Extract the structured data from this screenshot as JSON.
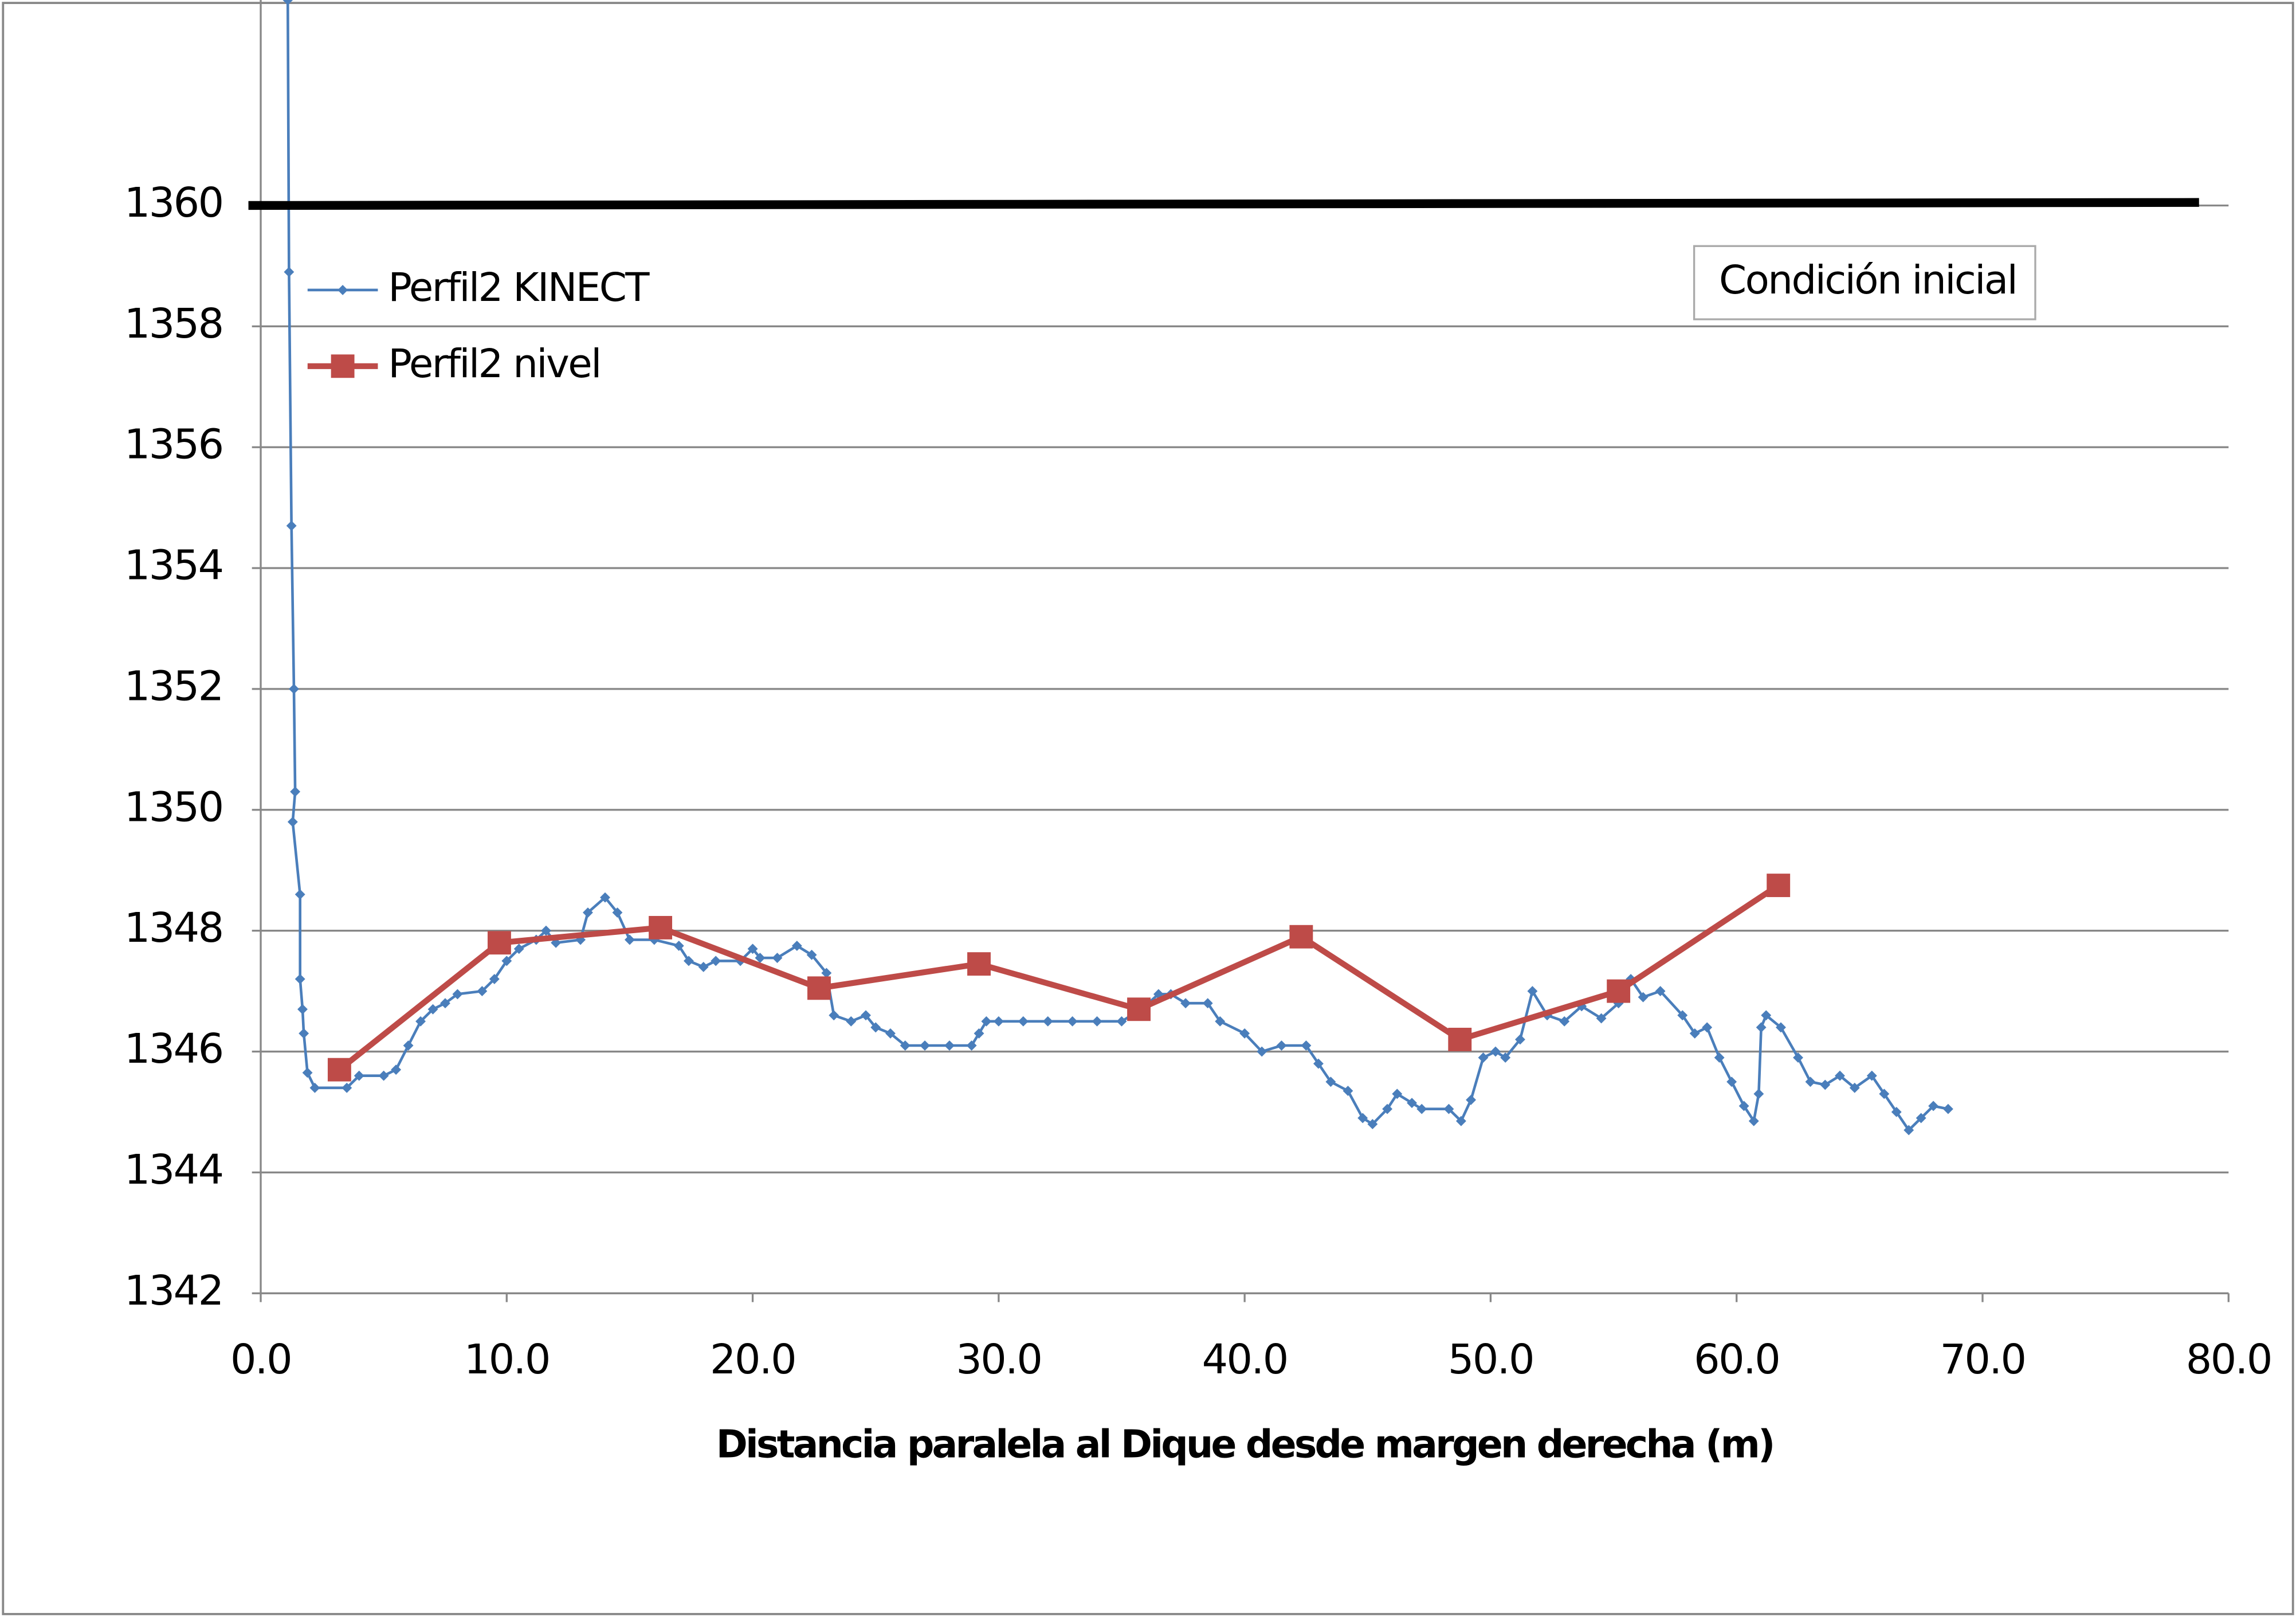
{
  "chart_data": {
    "type": "line",
    "x_label": "Distancia paralela al Dique desde margen derecha (m)",
    "xlim": [
      0,
      80
    ],
    "xticks": [
      {
        "value": 0,
        "label": "0.0"
      },
      {
        "value": 10,
        "label": "10.0"
      },
      {
        "value": 20,
        "label": "20.0"
      },
      {
        "value": 30,
        "label": "30.0"
      },
      {
        "value": 40,
        "label": "40.0"
      },
      {
        "value": 50,
        "label": "50.0"
      },
      {
        "value": 60,
        "label": "60.0"
      },
      {
        "value": 70,
        "label": "70.0"
      },
      {
        "value": 80,
        "label": "80.0"
      }
    ],
    "ylim": [
      1342,
      1363.4
    ],
    "yticks": [
      1342,
      1344,
      1346,
      1348,
      1350,
      1352,
      1354,
      1356,
      1358,
      1360
    ],
    "grid": true,
    "series": [
      {
        "name": "Perfil2 KINECT",
        "color": "#4a7ebb",
        "marker": "diamond",
        "x": [
          1.1,
          1.15,
          1.25,
          1.35,
          1.4,
          1.3,
          1.6,
          1.6,
          1.7,
          1.75,
          1.9,
          2.2,
          3.5,
          4.0,
          5.0,
          5.5,
          6.0,
          6.5,
          7.0,
          7.5,
          8.0,
          9.0,
          9.5,
          10.0,
          10.5,
          11.2,
          11.6,
          12.0,
          13.0,
          13.3,
          14.0,
          14.5,
          15.0,
          16.0,
          17.0,
          17.4,
          18.0,
          18.5,
          19.5,
          20.0,
          20.3,
          21.0,
          21.8,
          22.4,
          23.0,
          23.3,
          24.0,
          24.6,
          25.0,
          25.6,
          26.2,
          27.0,
          28.0,
          28.9,
          29.2,
          29.5,
          30.0,
          31.0,
          32.0,
          33.0,
          34.0,
          35.0,
          35.8,
          36.5,
          37.0,
          37.6,
          38.5,
          39.0,
          40.0,
          40.7,
          41.5,
          42.5,
          43.0,
          43.5,
          44.2,
          44.8,
          45.2,
          45.8,
          46.2,
          46.8,
          47.2,
          48.3,
          48.8,
          49.2,
          49.7,
          50.2,
          50.6,
          51.2,
          51.7,
          52.3,
          53.0,
          53.7,
          54.5,
          55.2,
          55.7,
          56.2,
          56.9,
          57.8,
          58.3,
          58.8,
          59.3,
          59.8,
          60.3,
          60.7,
          60.9,
          61.0,
          61.2,
          61.8,
          62.5,
          63.0,
          63.6,
          64.2,
          64.8,
          65.5,
          66.0,
          66.5,
          67.0,
          67.5,
          68.0,
          68.6
        ],
        "values": [
          1363.4,
          1358.9,
          1354.7,
          1352.0,
          1350.3,
          1349.8,
          1348.6,
          1347.2,
          1346.7,
          1346.3,
          1345.65,
          1345.4,
          1345.4,
          1345.6,
          1345.6,
          1345.7,
          1346.1,
          1346.5,
          1346.7,
          1346.8,
          1346.95,
          1347.0,
          1347.2,
          1347.5,
          1347.7,
          1347.85,
          1348.0,
          1347.8,
          1347.85,
          1348.3,
          1348.55,
          1348.3,
          1347.85,
          1347.85,
          1347.75,
          1347.5,
          1347.4,
          1347.5,
          1347.5,
          1347.7,
          1347.55,
          1347.55,
          1347.75,
          1347.6,
          1347.3,
          1346.6,
          1346.5,
          1346.6,
          1346.4,
          1346.3,
          1346.1,
          1346.1,
          1346.1,
          1346.1,
          1346.3,
          1346.5,
          1346.5,
          1346.5,
          1346.5,
          1346.5,
          1346.5,
          1346.5,
          1346.7,
          1346.95,
          1346.95,
          1346.8,
          1346.8,
          1346.5,
          1346.3,
          1346.0,
          1346.1,
          1346.1,
          1345.8,
          1345.5,
          1345.35,
          1344.9,
          1344.8,
          1345.05,
          1345.3,
          1345.15,
          1345.05,
          1345.05,
          1344.85,
          1345.2,
          1345.9,
          1346.0,
          1345.9,
          1346.2,
          1347.0,
          1346.6,
          1346.5,
          1346.75,
          1346.55,
          1346.8,
          1347.2,
          1346.9,
          1347.0,
          1346.6,
          1346.3,
          1346.4,
          1345.9,
          1345.5,
          1345.1,
          1344.85,
          1345.3,
          1346.4,
          1346.6,
          1346.4,
          1345.9,
          1345.5,
          1345.45,
          1345.6,
          1345.4,
          1345.6,
          1345.3,
          1345.0,
          1344.7,
          1344.9,
          1345.1,
          1345.05
        ]
      },
      {
        "name": "Perfil2 nivel",
        "color": "#be4b48",
        "marker": "square",
        "x": [
          3.2,
          9.7,
          16.25,
          22.7,
          29.2,
          35.7,
          42.3,
          48.75,
          55.2,
          61.7
        ],
        "values": [
          1345.7,
          1347.8,
          1348.05,
          1347.05,
          1347.45,
          1346.7,
          1347.9,
          1346.2,
          1347.0,
          1348.75
        ]
      },
      {
        "name": "Condición inicial",
        "color": "#000000",
        "marker": "none",
        "x": [
          -0.5,
          78.8
        ],
        "values": [
          1360,
          1360.05
        ]
      }
    ]
  }
}
